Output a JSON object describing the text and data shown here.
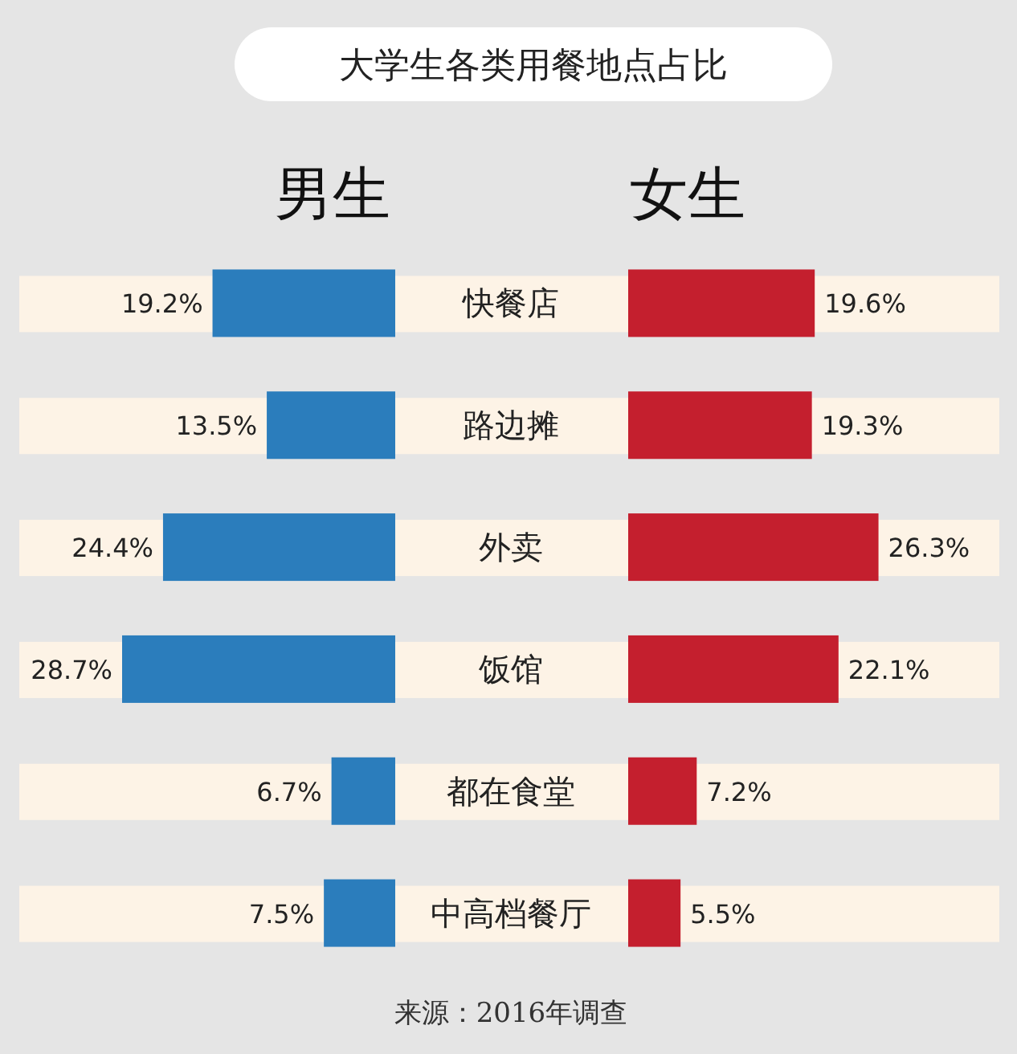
{
  "chart_data": [
    {
      "type": "bar",
      "orientation": "horizontal",
      "title": "大学生各类用餐地点占比",
      "categories": [
        "快餐店",
        "路边摊",
        "外卖",
        "饭馆",
        "都在食堂",
        "中高档餐厅"
      ],
      "series": [
        {
          "name": "男生",
          "color": "#2b7dbc",
          "values": [
            19.2,
            13.5,
            24.4,
            28.7,
            6.7,
            7.5
          ],
          "value_labels": [
            "19.2%",
            "13.5%",
            "24.4%",
            "28.7%",
            "6.7%",
            "7.5%"
          ]
        }
      ],
      "legend": "top",
      "annotations": [
        "来源：2016年调查"
      ]
    },
    {
      "type": "bar",
      "orientation": "horizontal",
      "categories": [
        null,
        null,
        null,
        null,
        null,
        null
      ],
      "series": [
        {
          "name": "女生",
          "color": "#c41f2e",
          "values": [
            19.6,
            19.3,
            26.3,
            22.1,
            7.2,
            5.5
          ],
          "value_labels": [
            "19.6%",
            "19.3%",
            "26.3%",
            "22.1%",
            "7.2%",
            "5.5%"
          ]
        }
      ],
      "legend": "top"
    }
  ]
}
